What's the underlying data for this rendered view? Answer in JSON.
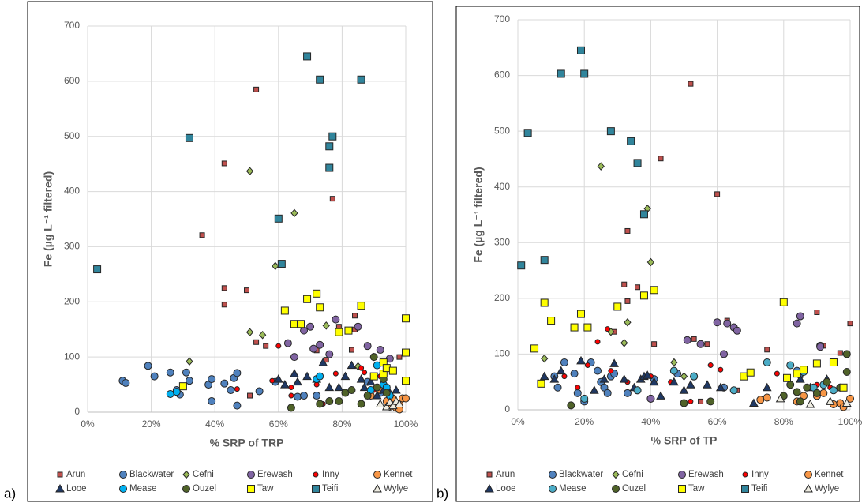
{
  "chart_data": [
    {
      "type": "scatter",
      "panel_label": "a)",
      "x_label": "% SRP of TRP",
      "y_label": "Fe (µg L⁻¹ filtered)",
      "xlim": [
        0,
        100
      ],
      "ylim": [
        0,
        700
      ],
      "grid": true,
      "xticks": [
        {
          "value": 0,
          "label": "0%"
        },
        {
          "value": 20,
          "label": "20%"
        },
        {
          "value": 40,
          "label": "40%"
        },
        {
          "value": 60,
          "label": "60%"
        },
        {
          "value": 80,
          "label": "80%"
        },
        {
          "value": 100,
          "label": "100%"
        }
      ],
      "yticks": [
        0,
        100,
        200,
        300,
        400,
        500,
        600,
        700
      ],
      "series": [
        {
          "name": "Arun",
          "color": "#c0504d",
          "marker": "small-square",
          "x": [
            53,
            43,
            36,
            43,
            43,
            50,
            53,
            56,
            65,
            77,
            79,
            83,
            84,
            72,
            75,
            51,
            84,
            93,
            98
          ],
          "values": [
            585,
            451,
            321,
            225,
            195,
            221,
            127,
            120,
            160,
            387,
            155,
            113,
            175,
            112,
            95,
            30,
            150,
            58,
            100
          ]
        },
        {
          "name": "Blackwater",
          "color": "#4f81bd",
          "marker": "circle",
          "x": [
            11,
            12,
            19,
            21,
            26,
            28,
            29,
            31,
            32,
            38,
            39,
            39,
            43,
            45,
            46,
            47,
            47,
            54,
            59,
            66,
            68,
            72,
            88,
            92
          ],
          "values": [
            57,
            53,
            84,
            65,
            72,
            40,
            32,
            72,
            57,
            50,
            20,
            60,
            52,
            40,
            62,
            71,
            12,
            38,
            55,
            28,
            30,
            30,
            55,
            35
          ]
        },
        {
          "name": "Cefni",
          "color": "#9bbb59",
          "marker": "diamond",
          "x": [
            32,
            51,
            51,
            55,
            59,
            65,
            75,
            85,
            90
          ],
          "values": [
            92,
            145,
            437,
            140,
            265,
            361,
            157,
            83,
            100
          ]
        },
        {
          "name": "Erewash",
          "color": "#8064a2",
          "marker": "circle",
          "x": [
            63,
            65,
            68,
            70,
            71,
            73,
            76,
            78,
            85,
            88,
            92,
            95
          ],
          "values": [
            125,
            100,
            148,
            155,
            115,
            122,
            105,
            168,
            155,
            120,
            113,
            97
          ]
        },
        {
          "name": "Inny",
          "color": "#ff0000",
          "marker": "small-circle",
          "x": [
            47,
            58,
            60,
            64,
            64,
            72,
            74,
            78,
            86,
            87,
            90,
            92
          ],
          "values": [
            42,
            57,
            120,
            45,
            30,
            50,
            15,
            70,
            80,
            72,
            40,
            65
          ]
        },
        {
          "name": "Kennet",
          "color": "#f79646",
          "marker": "circle",
          "x": [
            89,
            92,
            94,
            95,
            96,
            97,
            98,
            99,
            100,
            98
          ],
          "values": [
            30,
            40,
            20,
            10,
            25,
            8,
            15,
            25,
            25,
            5
          ]
        },
        {
          "name": "Looe",
          "color": "#1f3864",
          "marker": "triangle",
          "x": [
            60,
            62,
            65,
            66,
            69,
            72,
            74,
            76,
            79,
            81,
            83,
            86,
            87,
            89,
            91,
            93,
            95,
            97
          ],
          "values": [
            60,
            50,
            70,
            55,
            65,
            60,
            90,
            45,
            45,
            65,
            85,
            60,
            45,
            55,
            30,
            40,
            35,
            40
          ]
        },
        {
          "name": "Mease",
          "color": "#00b0f0",
          "marker": "circle",
          "x": [
            26,
            28,
            72,
            73,
            89,
            91,
            93,
            94,
            95
          ],
          "values": [
            33,
            37,
            60,
            65,
            40,
            85,
            50,
            45,
            30
          ]
        },
        {
          "name": "Ouzel",
          "color": "#4f6228",
          "marker": "circle",
          "x": [
            64,
            73,
            76,
            79,
            81,
            83,
            86,
            88,
            90,
            91,
            93,
            94
          ],
          "values": [
            8,
            15,
            20,
            20,
            35,
            40,
            15,
            30,
            100,
            45,
            60,
            35
          ]
        },
        {
          "name": "Taw",
          "color": "#ffff00",
          "marker": "square",
          "x": [
            30,
            62,
            65,
            67,
            69,
            72,
            73,
            79,
            82,
            86,
            90,
            93,
            93,
            94,
            96,
            100,
            100,
            100
          ],
          "values": [
            47,
            184,
            160,
            160,
            205,
            215,
            190,
            145,
            148,
            193,
            65,
            90,
            70,
            80,
            75,
            170,
            108,
            57
          ]
        },
        {
          "name": "Teifi",
          "color": "#31859c",
          "marker": "square",
          "x": [
            3,
            32,
            60,
            61,
            69,
            73,
            76,
            77,
            76,
            86
          ],
          "values": [
            259,
            497,
            351,
            269,
            645,
            603,
            482,
            500,
            443,
            603
          ]
        },
        {
          "name": "Wylye",
          "color": "#eeece1",
          "marker": "triangle",
          "x": [
            92,
            94,
            95,
            96,
            97,
            98
          ],
          "values": [
            15,
            10,
            18,
            12,
            20,
            15
          ]
        }
      ]
    },
    {
      "type": "scatter",
      "panel_label": "b)",
      "x_label": "% SRP of TP",
      "y_label": "Fe (µg L⁻¹ filtered)",
      "xlim": [
        0,
        100
      ],
      "ylim": [
        0,
        700
      ],
      "grid": true,
      "xticks": [
        {
          "value": 0,
          "label": "0%"
        },
        {
          "value": 20,
          "label": "20%"
        },
        {
          "value": 40,
          "label": "40%"
        },
        {
          "value": 60,
          "label": "60%"
        },
        {
          "value": 80,
          "label": "80%"
        },
        {
          "value": 100,
          "label": "100%"
        }
      ],
      "yticks": [
        0,
        100,
        200,
        300,
        400,
        500,
        600,
        700
      ],
      "series": [
        {
          "name": "Arun",
          "color": "#c0504d",
          "marker": "small-square",
          "x": [
            52,
            43,
            60,
            33,
            32,
            36,
            41,
            33,
            53,
            57,
            63,
            66,
            75,
            85,
            90,
            92,
            97,
            100,
            55,
            29
          ],
          "values": [
            585,
            451,
            387,
            321,
            225,
            220,
            118,
            195,
            127,
            118,
            160,
            35,
            108,
            62,
            175,
            115,
            102,
            155,
            15,
            140
          ]
        },
        {
          "name": "Blackwater",
          "color": "#4f81bd",
          "marker": "circle",
          "x": [
            11,
            12,
            14,
            17,
            18,
            20,
            22,
            24,
            25,
            26,
            27,
            28,
            29,
            33,
            36,
            40,
            41,
            47,
            48,
            53,
            62,
            84,
            91,
            85
          ],
          "values": [
            60,
            40,
            85,
            65,
            30,
            15,
            85,
            70,
            50,
            40,
            30,
            60,
            65,
            30,
            35,
            20,
            55,
            70,
            65,
            60,
            40,
            70,
            115,
            65
          ]
        },
        {
          "name": "Cefni",
          "color": "#9bbb59",
          "marker": "diamond",
          "x": [
            8,
            25,
            28,
            32,
            33,
            39,
            40,
            47,
            50
          ],
          "values": [
            92,
            437,
            140,
            120,
            157,
            361,
            265,
            85,
            60
          ]
        },
        {
          "name": "Erewash",
          "color": "#8064a2",
          "marker": "circle",
          "x": [
            40,
            51,
            55,
            60,
            62,
            63,
            65,
            66,
            84,
            85,
            91
          ],
          "values": [
            20,
            125,
            118,
            157,
            100,
            155,
            148,
            142,
            155,
            168,
            113
          ]
        },
        {
          "name": "Inny",
          "color": "#ff0000",
          "marker": "small-circle",
          "x": [
            14,
            18,
            21,
            24,
            27,
            28,
            33,
            40,
            46,
            52,
            58,
            61,
            78,
            90,
            94
          ],
          "values": [
            60,
            40,
            80,
            122,
            145,
            70,
            50,
            60,
            50,
            15,
            80,
            72,
            65,
            45,
            40
          ]
        },
        {
          "name": "Kennet",
          "color": "#f79646",
          "marker": "circle",
          "x": [
            73,
            75,
            84,
            86,
            90,
            92,
            95,
            97,
            100,
            98
          ],
          "values": [
            18,
            22,
            15,
            25,
            25,
            30,
            10,
            12,
            20,
            5
          ]
        },
        {
          "name": "Looe",
          "color": "#1f3864",
          "marker": "triangle",
          "x": [
            8,
            11,
            13,
            19,
            23,
            26,
            29,
            32,
            35,
            37,
            38,
            39,
            41,
            43,
            47,
            50,
            52,
            57,
            61,
            71,
            75,
            85,
            88,
            93
          ],
          "values": [
            60,
            55,
            70,
            88,
            35,
            55,
            83,
            55,
            40,
            55,
            60,
            62,
            50,
            25,
            50,
            35,
            45,
            45,
            40,
            12,
            40,
            55,
            40,
            55
          ]
        },
        {
          "name": "Mease",
          "color": "#4bacc6",
          "marker": "circle",
          "x": [
            20,
            36,
            47,
            53,
            65,
            75,
            82,
            86,
            89,
            92,
            95
          ],
          "values": [
            20,
            35,
            70,
            60,
            35,
            85,
            80,
            68,
            40,
            45,
            35
          ]
        },
        {
          "name": "Ouzel",
          "color": "#4f6228",
          "marker": "circle",
          "x": [
            16,
            50,
            58,
            80,
            82,
            84,
            85,
            87,
            90,
            93,
            97,
            99,
            99
          ],
          "values": [
            8,
            12,
            15,
            25,
            45,
            32,
            15,
            40,
            30,
            50,
            40,
            100,
            68
          ]
        },
        {
          "name": "Taw",
          "color": "#ffff00",
          "marker": "square",
          "x": [
            5,
            8,
            7,
            10,
            17,
            19,
            21,
            30,
            38,
            41,
            68,
            70,
            80,
            81,
            84,
            86,
            90,
            95,
            98
          ],
          "values": [
            110,
            192,
            47,
            160,
            148,
            172,
            148,
            185,
            205,
            215,
            60,
            67,
            193,
            57,
            65,
            72,
            83,
            85,
            40
          ]
        },
        {
          "name": "Teifi",
          "color": "#31859c",
          "marker": "square",
          "x": [
            1,
            3,
            8,
            13,
            19,
            20,
            28,
            34,
            36,
            38
          ],
          "values": [
            259,
            497,
            269,
            603,
            645,
            603,
            500,
            482,
            443,
            351
          ]
        },
        {
          "name": "Wylye",
          "color": "#eeece1",
          "marker": "triangle",
          "x": [
            79,
            88,
            94,
            99
          ],
          "values": [
            20,
            10,
            15,
            12
          ]
        }
      ]
    }
  ]
}
